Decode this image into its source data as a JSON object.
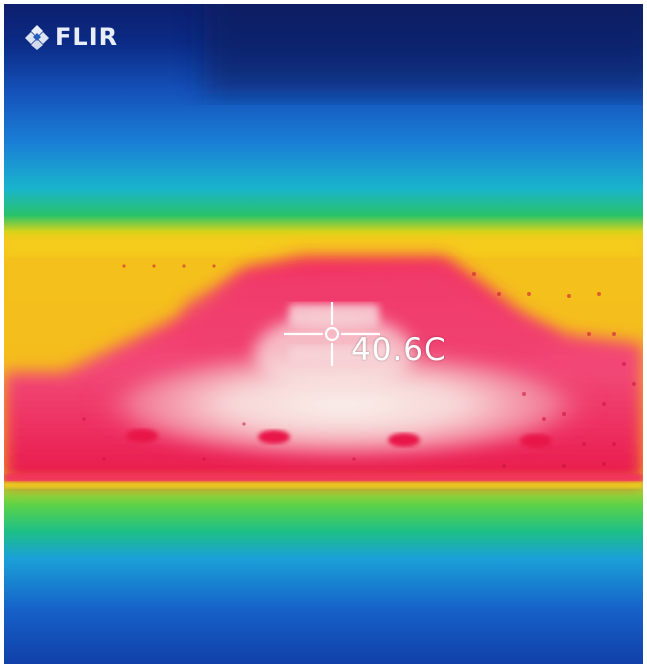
{
  "camera": {
    "brand": "FLIR"
  },
  "measurement": {
    "spot_temperature": "40.6C"
  },
  "colors": {
    "cold": "#0a1a6a",
    "cool": "#1f6fd8",
    "mid": "#1ec06a",
    "warm": "#f2c21a",
    "hot": "#f0245a",
    "hottest": "#f7e6e0"
  }
}
